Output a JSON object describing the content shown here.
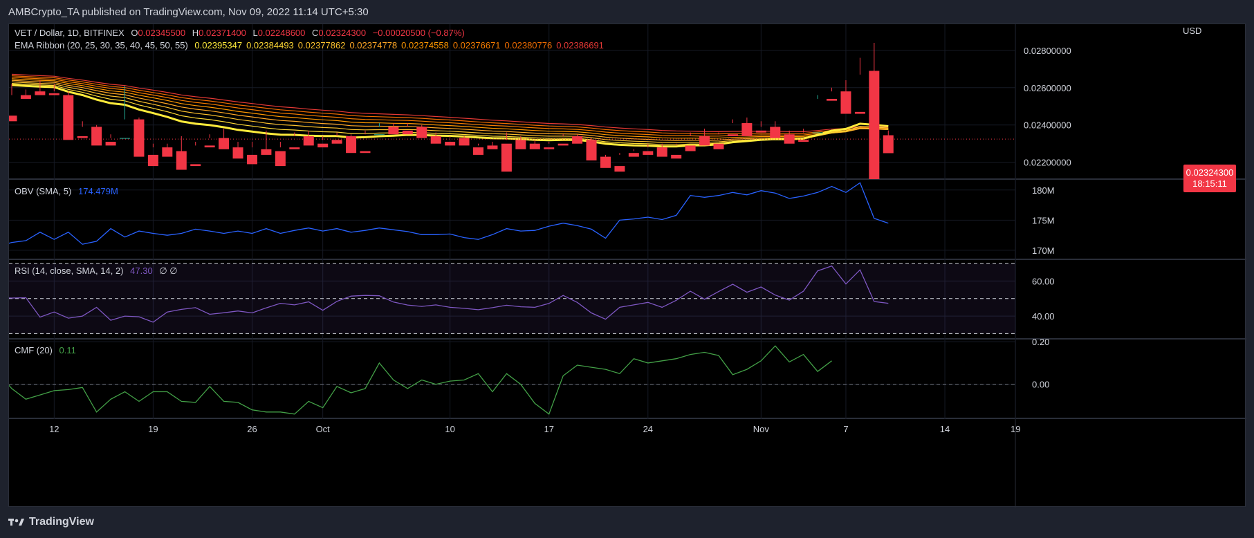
{
  "header": {
    "published": "AMBCrypto_TA published on TradingView.com, Nov 09, 2022 11:14 UTC+5:30"
  },
  "footer": {
    "brand": "TradingView"
  },
  "colors": {
    "up": "#22ab94",
    "down": "#f23645",
    "obv": "#2962ff",
    "rsi": "#7e57c2",
    "cmf": "#43a047"
  },
  "chart_data": [
    {
      "type": "candlestick",
      "title": "VET / Dollar, 1D, BITFINEX",
      "ohlc": {
        "o_label": "O",
        "o": "0.02345500",
        "h_label": "H",
        "h": "0.02371400",
        "l_label": "L",
        "l": "0.02248600",
        "c_label": "C",
        "c": "0.02324300",
        "change": "−0.00020500 (−0.87%)"
      },
      "currency": "USD",
      "last_price": "0.02324300",
      "countdown": "18:15:11",
      "y_ticks": [
        "0.02800000",
        "0.02600000",
        "0.02400000",
        "0.02200000"
      ],
      "y_tick_values": [
        0.028,
        0.026,
        0.024,
        0.022
      ],
      "ylim": [
        0.0211,
        0.0294
      ],
      "x_ticks": [
        {
          "label": "12",
          "day": 3
        },
        {
          "label": "19",
          "day": 10
        },
        {
          "label": "26",
          "day": 17
        },
        {
          "label": "Oct",
          "day": 22
        },
        {
          "label": "10",
          "day": 31
        },
        {
          "label": "17",
          "day": 38
        },
        {
          "label": "24",
          "day": 45
        },
        {
          "label": "Nov",
          "day": 53
        },
        {
          "label": "7",
          "day": 59
        },
        {
          "label": "14",
          "day": 66
        },
        {
          "label": "19",
          "day": 71
        }
      ],
      "candles": [
        [
          0.0245,
          0.0262,
          0.0256,
          0.0242
        ],
        [
          0.0256,
          0.0259,
          0.0256,
          0.0254
        ],
        [
          0.0258,
          0.0264,
          0.0257,
          0.0256
        ],
        [
          0.0257,
          0.0262,
          0.0258,
          0.0256
        ],
        [
          0.0256,
          0.0258,
          0.0234,
          0.0232
        ],
        [
          0.0234,
          0.0242,
          0.0239,
          0.0233
        ],
        [
          0.0239,
          0.024,
          0.0231,
          0.0229
        ],
        [
          0.0231,
          0.0235,
          0.0233,
          0.0229
        ],
        [
          0.0233,
          0.0261,
          0.0243,
          0.0233
        ],
        [
          0.0243,
          0.0244,
          0.0224,
          0.0223
        ],
        [
          0.0224,
          0.023,
          0.0228,
          0.0218
        ],
        [
          0.0228,
          0.023,
          0.0225,
          0.0223
        ],
        [
          0.0226,
          0.0234,
          0.0219,
          0.0216
        ],
        [
          0.0219,
          0.0231,
          0.0229,
          0.0218
        ],
        [
          0.0229,
          0.0235,
          0.0233,
          0.0228
        ],
        [
          0.0233,
          0.0238,
          0.0228,
          0.0227
        ],
        [
          0.0228,
          0.0231,
          0.0224,
          0.0222
        ],
        [
          0.0224,
          0.0231,
          0.0228,
          0.0219
        ],
        [
          0.0227,
          0.0237,
          0.0226,
          0.0224
        ],
        [
          0.0226,
          0.0231,
          0.0228,
          0.0218
        ],
        [
          0.0228,
          0.0236,
          0.0234,
          0.0227
        ],
        [
          0.0234,
          0.0237,
          0.023,
          0.0229
        ],
        [
          0.023,
          0.0234,
          0.0232,
          0.0228
        ],
        [
          0.0232,
          0.0236,
          0.0234,
          0.023
        ],
        [
          0.0234,
          0.0235,
          0.0226,
          0.0225
        ],
        [
          0.0226,
          0.0237,
          0.0235,
          0.0225
        ],
        [
          0.0235,
          0.0241,
          0.0239,
          0.0235
        ],
        [
          0.0239,
          0.0241,
          0.0237,
          0.0235
        ],
        [
          0.0237,
          0.0241,
          0.0239,
          0.0235
        ],
        [
          0.0239,
          0.024,
          0.0234,
          0.0233
        ],
        [
          0.0234,
          0.0236,
          0.0231,
          0.023
        ],
        [
          0.0231,
          0.0234,
          0.0233,
          0.0229
        ],
        [
          0.0233,
          0.0234,
          0.023,
          0.0229
        ],
        [
          0.0228,
          0.023,
          0.0229,
          0.0224
        ],
        [
          0.0229,
          0.0231,
          0.0229,
          0.0227
        ],
        [
          0.023,
          0.0236,
          0.0232,
          0.0215
        ],
        [
          0.0232,
          0.0234,
          0.0229,
          0.0227
        ],
        [
          0.023,
          0.0232,
          0.0228,
          0.0227
        ],
        [
          0.0228,
          0.0231,
          0.023,
          0.0227
        ],
        [
          0.023,
          0.0235,
          0.0234,
          0.0229
        ],
        [
          0.0234,
          0.0235,
          0.0232,
          0.023
        ],
        [
          0.0232,
          0.0233,
          0.0223,
          0.0221
        ],
        [
          0.0223,
          0.0224,
          0.0218,
          0.0217
        ],
        [
          0.0218,
          0.0225,
          0.0224,
          0.0215
        ],
        [
          0.0225,
          0.0227,
          0.0226,
          0.0223
        ],
        [
          0.0226,
          0.023,
          0.0228,
          0.0224
        ],
        [
          0.0228,
          0.023,
          0.0224,
          0.0223
        ],
        [
          0.0224,
          0.023,
          0.0229,
          0.0222
        ],
        [
          0.0229,
          0.0236,
          0.0234,
          0.0226
        ],
        [
          0.0234,
          0.0238,
          0.023,
          0.0229
        ],
        [
          0.023,
          0.0236,
          0.0235,
          0.0227
        ],
        [
          0.0235,
          0.0243,
          0.0241,
          0.0234
        ],
        [
          0.0241,
          0.0244,
          0.0237,
          0.0234
        ],
        [
          0.0237,
          0.0242,
          0.0239,
          0.0236
        ],
        [
          0.0239,
          0.0242,
          0.0235,
          0.0233
        ],
        [
          0.0235,
          0.0237,
          0.0232,
          0.023
        ],
        [
          0.0232,
          0.0238,
          0.0236,
          0.0231
        ],
        [
          0.0236,
          0.0256,
          0.0254,
          0.0236
        ],
        [
          0.0254,
          0.026,
          0.0258,
          0.0253
        ],
        [
          0.0258,
          0.0264,
          0.0247,
          0.0246
        ],
        [
          0.0247,
          0.0276,
          0.0267,
          0.0246
        ],
        [
          0.0269,
          0.0284,
          0.02345,
          0.0211
        ],
        [
          0.02345,
          0.02371,
          0.02324,
          0.02249
        ]
      ]
    },
    {
      "type": "line",
      "title": "EMA Ribbon (20, 25, 30, 35, 40, 45, 50, 55)",
      "values_text": [
        "0.02395347",
        "0.02384493",
        "0.02377862",
        "0.02374778",
        "0.02374558",
        "0.02376671",
        "0.02380776",
        "0.02386691"
      ],
      "colors": [
        "#ffeb3b",
        "#fdd835",
        "#fbc02d",
        "#ffa726",
        "#ff9800",
        "#f57c00",
        "#ef6c00",
        "#e53935"
      ]
    },
    {
      "type": "line",
      "title": "OBV (SMA, 5)",
      "value_text": "174.479M",
      "y_ticks": [
        "180M",
        "175M",
        "170M"
      ],
      "y_tick_values": [
        180,
        175,
        170
      ],
      "ylim": [
        168.5,
        181.7
      ],
      "values": [
        170.3,
        170.6,
        171.3,
        171.6,
        173.0,
        171.8,
        173.0,
        171.0,
        171.5,
        173.6,
        172.2,
        173.2,
        172.8,
        172.5,
        172.8,
        173.5,
        173.2,
        172.8,
        173.2,
        172.8,
        173.6,
        172.8,
        173.3,
        173.7,
        173.2,
        173.6,
        173.0,
        173.3,
        173.7,
        173.4,
        173.1,
        172.6,
        172.6,
        172.7,
        172.1,
        171.8,
        172.6,
        173.6,
        173.2,
        173.3,
        174.0,
        174.5,
        174.1,
        173.5,
        172.0,
        175.0,
        175.2,
        175.5,
        175.1,
        175.8,
        179.1,
        178.8,
        179.1,
        179.6,
        179.2,
        179.9,
        179.5,
        178.6,
        179.0,
        179.6,
        180.6,
        179.6,
        181.2,
        175.3,
        174.5
      ],
      "day_offset": -2
    },
    {
      "type": "line",
      "title": "RSI (14, close, SMA, 14, 2)",
      "value_text": "47.30",
      "extra_text": "∅  ∅",
      "y_ticks": [
        "60.00",
        "40.00"
      ],
      "y_tick_values": [
        60,
        40
      ],
      "bands": [
        70,
        50,
        30
      ],
      "ylim": [
        27,
        72
      ],
      "values": [
        50.2,
        50.6,
        50.3,
        50.5,
        39.4,
        42.3,
        38.8,
        40.0,
        45.0,
        37.6,
        40.0,
        39.6,
        36.5,
        42.3,
        43.8,
        44.8,
        41.0,
        41.9,
        42.9,
        41.8,
        44.7,
        47.3,
        46.4,
        48.1,
        43.3,
        48.4,
        51.4,
        51.8,
        51.6,
        48.0,
        46.3,
        45.5,
        46.4,
        45.0,
        44.4,
        43.6,
        44.8,
        46.2,
        45.3,
        45.0,
        47.2,
        51.8,
        47.8,
        41.8,
        38.2,
        45.0,
        46.4,
        47.8,
        45.0,
        49.0,
        54.2,
        49.6,
        54.0,
        58.2,
        53.6,
        56.6,
        52.0,
        49.1,
        54.2,
        65.8,
        68.6,
        58.3,
        66.4,
        48.3,
        47.3
      ],
      "day_offset": -2
    },
    {
      "type": "line",
      "title": "CMF (20)",
      "value_text": "0.11",
      "y_ticks": [
        "0.20",
        "0.00"
      ],
      "y_tick_values": [
        0.2,
        0.0
      ],
      "zero_line": 0,
      "ylim": [
        -0.16,
        0.21
      ],
      "values": [
        0.07,
        0.06,
        0.055,
        -0.02,
        -0.07,
        -0.05,
        -0.03,
        -0.025,
        -0.015,
        -0.13,
        -0.07,
        -0.035,
        -0.08,
        -0.035,
        -0.035,
        -0.08,
        -0.085,
        -0.01,
        -0.08,
        -0.085,
        -0.12,
        -0.13,
        -0.13,
        -0.14,
        -0.08,
        -0.11,
        -0.01,
        -0.04,
        -0.02,
        0.1,
        0.02,
        -0.02,
        0.02,
        0.0,
        0.015,
        0.02,
        0.05,
        -0.035,
        0.05,
        0.0,
        -0.09,
        -0.14,
        0.04,
        0.09,
        0.08,
        0.07,
        0.05,
        0.12,
        0.1,
        0.11,
        0.12,
        0.14,
        0.15,
        0.135,
        0.045,
        0.07,
        0.11,
        0.18,
        0.105,
        0.14,
        0.06,
        0.11
      ],
      "day_offset": -3
    }
  ]
}
